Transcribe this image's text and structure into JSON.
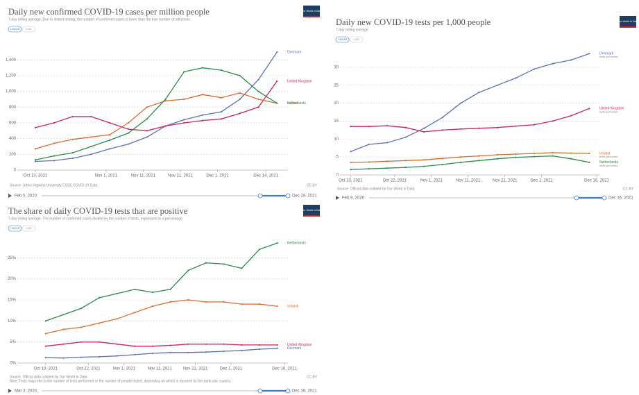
{
  "chart_data": [
    {
      "type": "line",
      "title": "Daily new confirmed COVID-19 cases per million people",
      "subtitle": "7-day rolling average. Due to limited testing, the number of confirmed cases is lower than the true number of infections.",
      "logo": "Our World in Data",
      "buttons": [
        "LINEAR",
        "LOG"
      ],
      "source": "Source: Johns Hopkins University CSSE COVID-19 Data",
      "license": "CC BY",
      "timeline": {
        "start": "Feb 5, 2020",
        "end": "Dec 19, 2021"
      },
      "x": [
        "2021-10-13",
        "2021-10-18",
        "2021-10-23",
        "2021-10-28",
        "2021-11-02",
        "2021-11-07",
        "2021-11-12",
        "2021-11-17",
        "2021-11-22",
        "2021-11-27",
        "2021-12-02",
        "2021-12-07",
        "2021-12-12",
        "2021-12-17"
      ],
      "xlim": [
        "2021-10-10",
        "2021-12-19"
      ],
      "xticks": [
        {
          "value": "2021-10-13",
          "label": "Oct 13, 2021"
        },
        {
          "value": "2021-11-01",
          "label": "Nov 1, 2021"
        },
        {
          "value": "2021-11-11",
          "label": "Nov 11, 2021"
        },
        {
          "value": "2021-11-21",
          "label": "Nov 21, 2021"
        },
        {
          "value": "2021-12-01",
          "label": "Dec 1, 2021"
        },
        {
          "value": "2021-12-14",
          "label": "Dec 14, 2021"
        }
      ],
      "ylim": [
        0,
        1500
      ],
      "yticks": [
        0,
        200,
        400,
        600,
        800,
        {
          "value": 1000,
          "label": "1,000"
        },
        {
          "value": 1200,
          "label": "1,200"
        },
        {
          "value": 1400,
          "label": "1,400"
        }
      ],
      "grid": true,
      "series": [
        {
          "name": "Denmark",
          "color": "#5b6fb5",
          "values": [
            110,
            120,
            150,
            200,
            270,
            330,
            420,
            560,
            640,
            700,
            740,
            900,
            1150,
            1500
          ]
        },
        {
          "name": "United Kingdom",
          "color": "#c9245e",
          "values": [
            540,
            600,
            680,
            680,
            600,
            520,
            500,
            560,
            600,
            630,
            650,
            720,
            800,
            1130
          ]
        },
        {
          "name": "Ireland",
          "color": "#d86b2c",
          "values": [
            270,
            340,
            390,
            420,
            450,
            600,
            800,
            880,
            900,
            960,
            920,
            980,
            900,
            850
          ]
        },
        {
          "name": "Netherlands",
          "color": "#2b8a4f",
          "values": [
            130,
            180,
            220,
            300,
            380,
            470,
            650,
            900,
            1250,
            1300,
            1270,
            1200,
            1000,
            850
          ]
        }
      ]
    },
    {
      "type": "line",
      "title": "Daily new COVID-19 tests per 1,000 people",
      "subtitle": "7-day rolling average",
      "logo": "Our World in Data",
      "buttons": [
        "LINEAR",
        "LOG"
      ],
      "source": "Source: Official data collated by Our World in Data",
      "license": "CC BY",
      "timeline": {
        "start": "Feb 9, 2020",
        "end": "Dec 16, 2021"
      },
      "x": [
        "2021-10-10",
        "2021-10-15",
        "2021-10-20",
        "2021-10-25",
        "2021-10-30",
        "2021-11-04",
        "2021-11-09",
        "2021-11-14",
        "2021-11-19",
        "2021-11-24",
        "2021-11-29",
        "2021-12-04",
        "2021-12-09",
        "2021-12-14"
      ],
      "xlim": [
        "2021-10-09",
        "2021-12-16"
      ],
      "xticks": [
        {
          "value": "2021-10-10",
          "label": "Oct 10, 2021"
        },
        {
          "value": "2021-10-22",
          "label": "Oct 22, 2021"
        },
        {
          "value": "2021-11-01",
          "label": "Nov 1, 2021"
        },
        {
          "value": "2021-11-11",
          "label": "Nov 11, 2021"
        },
        {
          "value": "2021-11-21",
          "label": "Nov 21, 2021"
        },
        {
          "value": "2021-12-01",
          "label": "Dec 1, 2021"
        },
        {
          "value": "2021-12-16",
          "label": "Dec 16, 2021"
        }
      ],
      "ylim": [
        0,
        35
      ],
      "yticks": [
        0,
        5,
        10,
        15,
        20,
        25,
        30
      ],
      "grid": true,
      "series": [
        {
          "name": "Denmark",
          "unit": "tests performed",
          "color": "#5b6fb5",
          "values": [
            6.5,
            8.5,
            9,
            10.5,
            13,
            16,
            20,
            23,
            25,
            27,
            29.5,
            31,
            32,
            33.8
          ]
        },
        {
          "name": "United Kingdom",
          "unit": "tests performed",
          "color": "#c9245e",
          "values": [
            13.5,
            13.5,
            13.7,
            13.2,
            12,
            12.5,
            12.8,
            13,
            13.2,
            13.6,
            14,
            15,
            16.5,
            18.5
          ]
        },
        {
          "name": "Ireland",
          "unit": "tests performed",
          "color": "#d86b2c",
          "values": [
            3.5,
            3.6,
            3.8,
            4,
            4.2,
            4.6,
            5,
            5.3,
            5.6,
            5.8,
            6,
            6.2,
            6.1,
            6
          ]
        },
        {
          "name": "Netherlands",
          "unit": "tests performed",
          "color": "#2b8a4f",
          "values": [
            1.5,
            1.7,
            1.9,
            2.1,
            2.4,
            2.9,
            3.5,
            4,
            4.5,
            4.9,
            5.1,
            5.3,
            4.5,
            3.5
          ]
        }
      ]
    },
    {
      "type": "line",
      "title": "The share of daily COVID-19 tests that are positive",
      "subtitle": "7-day rolling average. The number of confirmed cases divided by the number of tests, expressed as a percentage.",
      "logo": "Our World in Data",
      "buttons": [
        "LINEAR",
        "LOG"
      ],
      "source": "Source: Official data collated by Our World in Data",
      "note": "Note: Tests may refer to the number of tests performed or the number of people tested, depending on which is reported by the particular country.",
      "license": "CC BY",
      "timeline": {
        "start": "Mar 3, 2020",
        "end": "Dec 16, 2021"
      },
      "x": [
        "2021-10-10",
        "2021-10-15",
        "2021-10-20",
        "2021-10-25",
        "2021-10-30",
        "2021-11-04",
        "2021-11-09",
        "2021-11-14",
        "2021-11-19",
        "2021-11-24",
        "2021-11-29",
        "2021-12-04",
        "2021-12-09",
        "2021-12-14"
      ],
      "xlim": [
        "2021-10-04",
        "2021-12-16"
      ],
      "xticks": [
        {
          "value": "2021-10-10",
          "label": "Oct 10, 2021"
        },
        {
          "value": "2021-10-22",
          "label": "Oct 22, 2021"
        },
        {
          "value": "2021-11-01",
          "label": "Nov 1, 2021"
        },
        {
          "value": "2021-11-11",
          "label": "Nov 11, 2021"
        },
        {
          "value": "2021-11-21",
          "label": "Nov 21, 2021"
        },
        {
          "value": "2021-12-01",
          "label": "Dec 1, 2021"
        },
        {
          "value": "2021-12-16",
          "label": "Dec 16, 2021"
        }
      ],
      "ylim": [
        0,
        30
      ],
      "yticks": [
        {
          "value": 0,
          "label": "0%"
        },
        {
          "value": 5,
          "label": "5%"
        },
        {
          "value": 10,
          "label": "10%"
        },
        {
          "value": 15,
          "label": "15%"
        },
        {
          "value": 20,
          "label": "20%"
        },
        {
          "value": 25,
          "label": "25%"
        }
      ],
      "grid": true,
      "series": [
        {
          "name": "Netherlands",
          "color": "#2b8a4f",
          "values": [
            10,
            11.5,
            13,
            15.5,
            16.5,
            17.5,
            16.8,
            17.5,
            22,
            23.8,
            23.5,
            22.5,
            27,
            28.5
          ]
        },
        {
          "name": "Ireland",
          "color": "#d86b2c",
          "values": [
            7,
            8,
            8.5,
            9.5,
            10.5,
            12,
            13.5,
            14.5,
            15,
            14.5,
            14.5,
            14,
            14,
            13.5
          ]
        },
        {
          "name": "United Kingdom",
          "color": "#c9245e",
          "values": [
            4,
            4.5,
            5,
            5,
            4.5,
            4,
            4,
            4.2,
            4.5,
            4.5,
            4.5,
            4.3,
            4.3,
            4.3
          ]
        },
        {
          "name": "Denmark",
          "color": "#5b6fb5",
          "values": [
            1.3,
            1.2,
            1.4,
            1.5,
            1.7,
            2,
            2.3,
            2.5,
            2.5,
            2.6,
            2.8,
            3,
            3.3,
            3.5
          ]
        }
      ]
    }
  ]
}
